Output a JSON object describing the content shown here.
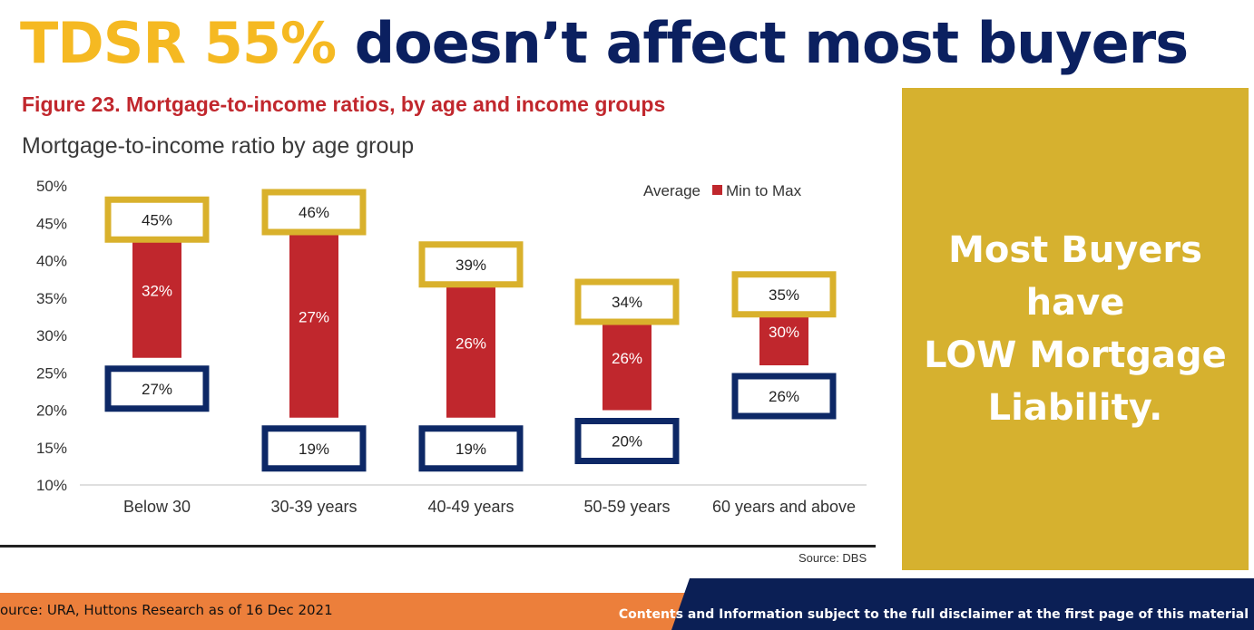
{
  "slide": {
    "title_highlight": "TDSR 55%",
    "title_rest": " doesn’t affect most buyers",
    "figure_title": "Figure 23. Mortgage-to-income ratios, by age and income groups",
    "chart_subtitle": "Mortgage-to-income ratio by age group",
    "chart_source": "Source: DBS",
    "callout_lines": [
      "Most Buyers",
      "have",
      "LOW Mortgage",
      "Liability."
    ],
    "footer_source": "ource: URA, Huttons Research as of 16 Dec 2021",
    "footer_disclaimer": "Contents and Information subject to the full disclaimer at the first page of this material"
  },
  "colors": {
    "title_highlight": "#F5B922",
    "title_rest": "#0B2060",
    "figure_title": "#C1272D",
    "bar": "#C0272D",
    "max_box": "#D9B12C",
    "min_box": "#0D2866",
    "callout_bg": "#D6B12F",
    "footer_orange": "#EC7F3B",
    "footer_navy": "#0B1F55"
  },
  "chart_data": {
    "type": "bar",
    "subtype": "floating-range",
    "title": "Mortgage-to-income ratio by age group",
    "categories": [
      "Below 30",
      "30-39 years",
      "40-49 years",
      "50-59 years",
      "60 years and above"
    ],
    "series": [
      {
        "name": "Min to Max",
        "min": [
          27,
          19,
          19,
          20,
          26
        ],
        "max": [
          45,
          46,
          39,
          34,
          35
        ]
      },
      {
        "name": "Average",
        "values": [
          32,
          27,
          26,
          26,
          30
        ]
      }
    ],
    "min_labels": [
      "27%",
      "19%",
      "19%",
      "20%",
      "26%"
    ],
    "max_labels": [
      "45%",
      "46%",
      "39%",
      "34%",
      "35%"
    ],
    "avg_labels": [
      "32%",
      "27%",
      "26%",
      "26%",
      "30%"
    ],
    "y_ticks": [
      "10%",
      "15%",
      "20%",
      "25%",
      "30%",
      "35%",
      "40%",
      "45%",
      "50%"
    ],
    "ylim": [
      10,
      50
    ],
    "legend": [
      "Average",
      "Min to Max"
    ],
    "legend_position": "top-right",
    "grid": false
  }
}
